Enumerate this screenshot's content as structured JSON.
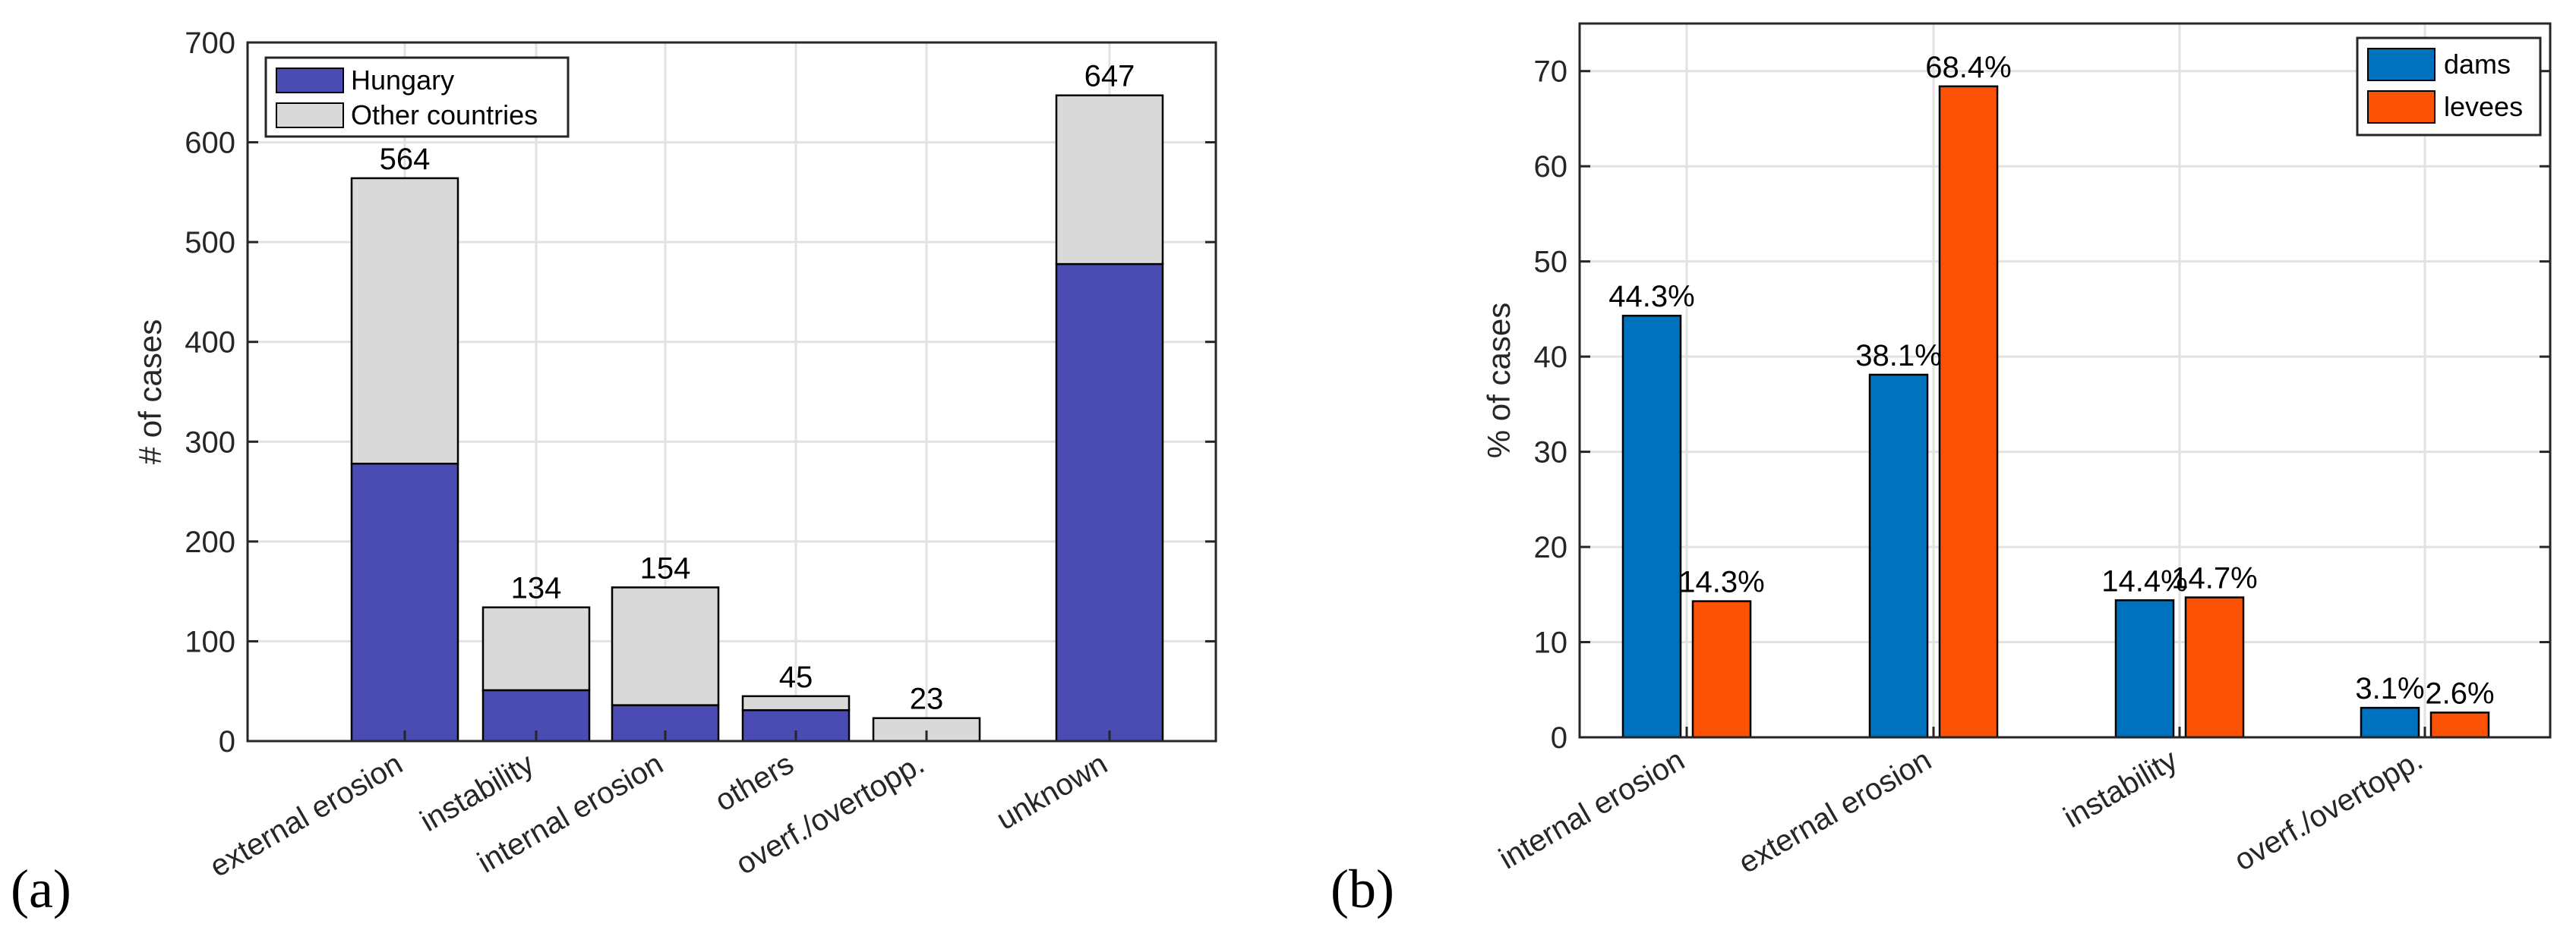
{
  "chart_data": [
    {
      "type": "bar",
      "stacked": true,
      "panel_label": "(a)",
      "title": "",
      "xlabel": "",
      "ylabel": "# of cases",
      "ylim": [
        0,
        700
      ],
      "yticks": [
        0,
        100,
        200,
        300,
        400,
        500,
        600,
        700
      ],
      "grid": true,
      "legend_position": "top-left",
      "categories": [
        "external erosion",
        "instability",
        "internal erosion",
        "others",
        "overf./overtopp.",
        "unknown"
      ],
      "series": [
        {
          "name": "Hungary",
          "color": "#4b4bb4",
          "values": [
            278,
            51,
            36,
            31,
            0,
            478
          ]
        },
        {
          "name": "Other countries",
          "color": "#d9d9d9",
          "values": [
            286,
            83,
            118,
            14,
            23,
            169
          ]
        }
      ],
      "totals": [
        "564",
        "134",
        "154",
        "45",
        "23",
        "647"
      ]
    },
    {
      "type": "bar",
      "stacked": false,
      "panel_label": "(b)",
      "title": "",
      "xlabel": "",
      "ylabel": "% of cases",
      "ylim": [
        0,
        75
      ],
      "yticks": [
        0,
        10,
        20,
        30,
        40,
        50,
        60,
        70
      ],
      "grid": true,
      "legend_position": "top-right",
      "categories": [
        "internal erosion",
        "external erosion",
        "instability",
        "overf./overtopp."
      ],
      "series": [
        {
          "name": "dams",
          "color": "#0072bd",
          "values": [
            44.3,
            38.1,
            14.4,
            3.1
          ],
          "labels": [
            "44.3%",
            "38.1%",
            "14.4%",
            "3.1%"
          ]
        },
        {
          "name": "levees",
          "color": "#fc5205",
          "values": [
            14.3,
            68.4,
            14.7,
            2.6
          ],
          "labels": [
            "14.3%",
            "68.4%",
            "14.7%",
            "2.6%"
          ]
        }
      ]
    }
  ]
}
